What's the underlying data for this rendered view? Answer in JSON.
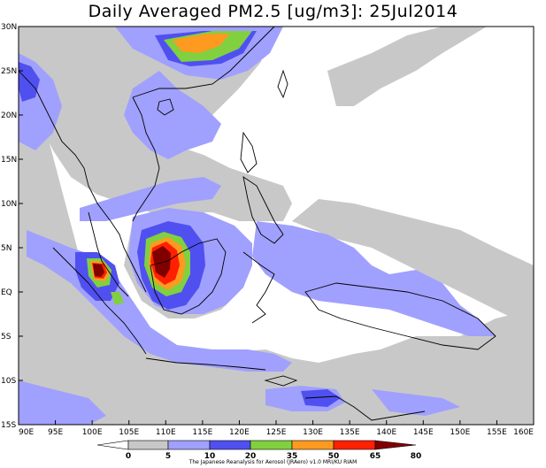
{
  "title": "Daily Averaged PM2.5 [ug/m3]: 25Jul2014",
  "credit": "The Japanese Reanalysis for Aerosol (JRAero) v1.0 MRI/KU RIAM",
  "lon_labels": [
    "90E",
    "95E",
    "100E",
    "105E",
    "110E",
    "115E",
    "120E",
    "125E",
    "130E",
    "135E",
    "140E",
    "145E",
    "150E",
    "155E",
    "160E"
  ],
  "lat_labels": [
    "30N",
    "25N",
    "20N",
    "15N",
    "10N",
    "5N",
    "EQ",
    "5S",
    "10S",
    "15S"
  ],
  "colorbar": {
    "labels": [
      "0",
      "5",
      "10",
      "20",
      "35",
      "50",
      "65",
      "80"
    ],
    "colors": [
      "#ffffff",
      "#c8c8c8",
      "#a0a0ff",
      "#5050f0",
      "#80d040",
      "#ff9a20",
      "#ff2000",
      "#800000"
    ]
  },
  "legend_levels_ugm3": [
    0,
    5,
    10,
    20,
    35,
    50,
    65,
    80
  ]
}
